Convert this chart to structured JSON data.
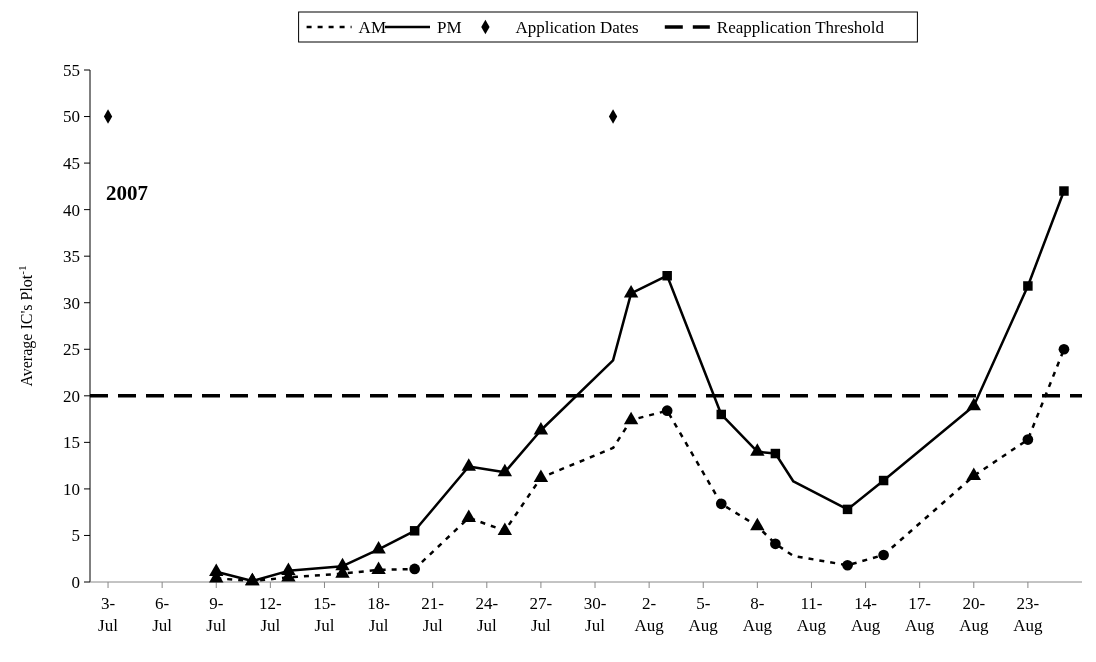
{
  "chart_data": {
    "type": "line",
    "ylabel": "Average IC's Plot$^{-1}$",
    "annotations": [
      "2007"
    ],
    "xlim": [
      "--07-02",
      "--08-26"
    ],
    "xticks": [
      {
        "value": "--07-03",
        "label": "3-\nJul"
      },
      {
        "value": "--07-06",
        "label": "6-\nJul"
      },
      {
        "value": "--07-09",
        "label": "9-\nJul"
      },
      {
        "value": "--07-12",
        "label": "12-\nJul"
      },
      {
        "value": "--07-15",
        "label": "15-\nJul"
      },
      {
        "value": "--07-18",
        "label": "18-\nJul"
      },
      {
        "value": "--07-21",
        "label": "21-\nJul"
      },
      {
        "value": "--07-24",
        "label": "24-\nJul"
      },
      {
        "value": "--07-27",
        "label": "27-\nJul"
      },
      {
        "value": "--07-30",
        "label": "30-\nJul"
      },
      {
        "value": "--08-02",
        "label": "2-\nAug"
      },
      {
        "value": "--08-05",
        "label": "5-\nAug"
      },
      {
        "value": "--08-08",
        "label": "8-\nAug"
      },
      {
        "value": "--08-11",
        "label": "11-\nAug"
      },
      {
        "value": "--08-14",
        "label": "14-\nAug"
      },
      {
        "value": "--08-17",
        "label": "17-\nAug"
      },
      {
        "value": "--08-20",
        "label": "20-\nAug"
      },
      {
        "value": "--08-23",
        "label": "23-\nAug"
      }
    ],
    "ylim": [
      0,
      55
    ],
    "yticks": [
      0,
      5,
      10,
      15,
      20,
      25,
      30,
      35,
      40,
      45,
      50,
      55
    ],
    "grid": false,
    "legend": "top",
    "x": [
      "--07-09",
      "--07-11",
      "--07-13",
      "--07-16",
      "--07-18",
      "--07-20",
      "--07-23",
      "--07-25",
      "--07-27",
      "--07-31",
      "--08-01",
      "--08-03",
      "--08-06",
      "--08-08",
      "--08-09",
      "--08-10",
      "--08-13",
      "--08-15",
      "--08-20",
      "--08-23",
      "--08-25"
    ],
    "series": [
      {
        "name": "AM",
        "color": "#000000",
        "line_style": "dashed",
        "marker": "none",
        "values": [
          0.4,
          0.1,
          0.5,
          0.9,
          1.3,
          1.4,
          6.9,
          5.5,
          11.2,
          14.4,
          17.4,
          18.4,
          8.4,
          6.0,
          4.1,
          2.8,
          1.8,
          2.9,
          11.4,
          15.3,
          25.0
        ]
      },
      {
        "name": "PM",
        "color": "#000000",
        "line_style": "solid",
        "marker": "none",
        "values": [
          1.1,
          0.1,
          1.2,
          1.7,
          3.5,
          5.5,
          12.4,
          11.8,
          16.3,
          23.8,
          31.0,
          32.9,
          18.0,
          14.0,
          13.8,
          10.8,
          7.8,
          10.9,
          18.9,
          31.8,
          42.0
        ]
      },
      {
        "name": "Application Dates",
        "type": "scatter",
        "color": "#000000",
        "marker": "diamond",
        "x": [
          "--07-03",
          "--07-31"
        ],
        "values": [
          50,
          50
        ]
      },
      {
        "type": "scatter",
        "color": "#000000",
        "marker": "triangle",
        "x": [
          "--07-09",
          "--07-11",
          "--07-13",
          "--07-16",
          "--07-18",
          "--07-23",
          "--07-25",
          "--07-27",
          "--08-01",
          "--08-08",
          "--08-20"
        ],
        "values": [
          0.4,
          0.1,
          0.5,
          0.9,
          1.3,
          6.9,
          5.5,
          11.2,
          17.4,
          6.0,
          11.4
        ]
      },
      {
        "type": "scatter",
        "color": "#000000",
        "marker": "circle",
        "x": [
          "--07-20",
          "--08-03",
          "--08-06",
          "--08-09",
          "--08-13",
          "--08-15",
          "--08-23",
          "--08-25"
        ],
        "values": [
          1.4,
          18.4,
          8.4,
          4.1,
          1.8,
          2.9,
          15.3,
          25.0
        ]
      },
      {
        "type": "scatter",
        "color": "#000000",
        "marker": "triangle",
        "x": [
          "--07-09",
          "--07-11",
          "--07-13",
          "--07-16",
          "--07-18",
          "--07-23",
          "--07-25",
          "--07-27",
          "--08-01",
          "--08-08",
          "--08-20"
        ],
        "values": [
          1.1,
          0.1,
          1.2,
          1.7,
          3.5,
          12.4,
          11.8,
          16.3,
          31.0,
          14.0,
          18.9
        ]
      },
      {
        "type": "scatter",
        "color": "#000000",
        "marker": "square",
        "x": [
          "--07-20",
          "--08-03",
          "--08-06",
          "--08-09",
          "--08-13",
          "--08-15",
          "--08-23",
          "--08-25"
        ],
        "values": [
          5.5,
          32.9,
          18.0,
          13.8,
          7.8,
          10.9,
          31.8,
          42.0
        ]
      }
    ],
    "ref_lines": [
      {
        "axis": "y",
        "value": 20,
        "label": "Reapplication Threshold",
        "color": "#000000",
        "line_style": "dashed"
      }
    ]
  }
}
